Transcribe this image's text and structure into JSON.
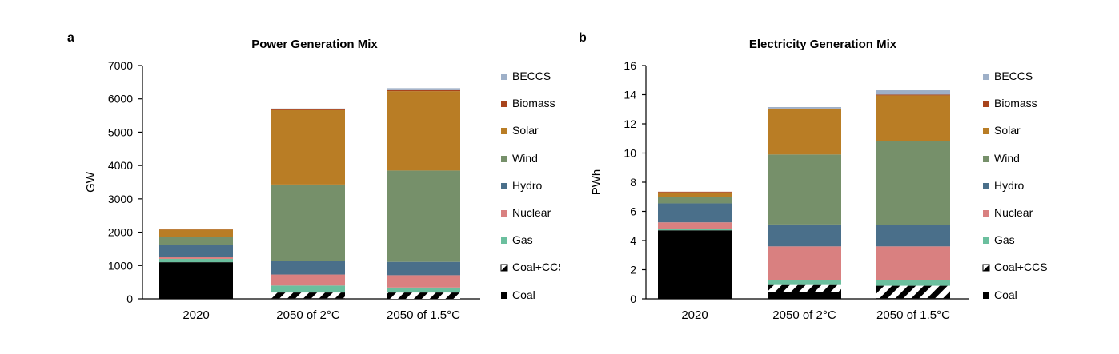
{
  "chart_data": [
    {
      "type": "bar",
      "stacked": true,
      "panel": "a",
      "title": "Power Generation Mix",
      "xlabel": "",
      "ylabel": "GW",
      "ylim": [
        0,
        7000
      ],
      "yticks": [
        0,
        1000,
        2000,
        3000,
        4000,
        5000,
        6000,
        7000
      ],
      "categories": [
        "2020",
        "2050 of 2°C",
        "2050 of 1.5°C"
      ],
      "series": [
        {
          "name": "Coal",
          "color": "#000000",
          "pattern": "solid",
          "values": [
            1100,
            20,
            0
          ]
        },
        {
          "name": "Coal+CCS",
          "color": "#000000",
          "pattern": "hatch",
          "values": [
            0,
            170,
            190
          ]
        },
        {
          "name": "Gas",
          "color": "#6bbf9e",
          "pattern": "solid",
          "values": [
            100,
            210,
            150
          ]
        },
        {
          "name": "Nuclear",
          "color": "#d98080",
          "pattern": "solid",
          "values": [
            50,
            330,
            370
          ]
        },
        {
          "name": "Hydro",
          "color": "#4a6f8a",
          "pattern": "solid",
          "values": [
            370,
            420,
            400
          ]
        },
        {
          "name": "Wind",
          "color": "#76906a",
          "pattern": "solid",
          "values": [
            240,
            2280,
            2740
          ]
        },
        {
          "name": "Solar",
          "color": "#b97d25",
          "pattern": "solid",
          "values": [
            220,
            2230,
            2380
          ]
        },
        {
          "name": "Biomass",
          "color": "#a8441c",
          "pattern": "solid",
          "values": [
            20,
            40,
            30
          ]
        },
        {
          "name": "BECCS",
          "color": "#9eb0c8",
          "pattern": "solid",
          "values": [
            0,
            10,
            60
          ]
        }
      ],
      "legend_position": "right"
    },
    {
      "type": "bar",
      "stacked": true,
      "panel": "b",
      "title": "Electricity Generation Mix",
      "xlabel": "",
      "ylabel": "PWh",
      "ylim": [
        0,
        16
      ],
      "yticks": [
        0,
        2,
        4,
        6,
        8,
        10,
        12,
        14,
        16
      ],
      "categories": [
        "2020",
        "2050 of 2°C",
        "2050 of 1.5°C"
      ],
      "series": [
        {
          "name": "Coal",
          "color": "#000000",
          "pattern": "solid",
          "values": [
            4.7,
            0.45,
            0.05
          ]
        },
        {
          "name": "Coal+CCS",
          "color": "#000000",
          "pattern": "hatch",
          "values": [
            0,
            0.5,
            0.85
          ]
        },
        {
          "name": "Gas",
          "color": "#6bbf9e",
          "pattern": "solid",
          "values": [
            0.1,
            0.35,
            0.4
          ]
        },
        {
          "name": "Nuclear",
          "color": "#d98080",
          "pattern": "solid",
          "values": [
            0.45,
            2.3,
            2.3
          ]
        },
        {
          "name": "Hydro",
          "color": "#4a6f8a",
          "pattern": "solid",
          "values": [
            1.3,
            1.5,
            1.45
          ]
        },
        {
          "name": "Wind",
          "color": "#76906a",
          "pattern": "solid",
          "values": [
            0.45,
            4.8,
            5.75
          ]
        },
        {
          "name": "Solar",
          "color": "#b97d25",
          "pattern": "solid",
          "values": [
            0.3,
            3.1,
            3.15
          ]
        },
        {
          "name": "Biomass",
          "color": "#a8441c",
          "pattern": "solid",
          "values": [
            0.05,
            0.05,
            0.05
          ]
        },
        {
          "name": "BECCS",
          "color": "#9eb0c8",
          "pattern": "solid",
          "values": [
            0,
            0.1,
            0.3
          ]
        }
      ],
      "legend_position": "right"
    }
  ],
  "legend_order": [
    "BECCS",
    "Biomass",
    "Solar",
    "Wind",
    "Hydro",
    "Nuclear",
    "Gas",
    "Coal+CCS",
    "Coal"
  ]
}
